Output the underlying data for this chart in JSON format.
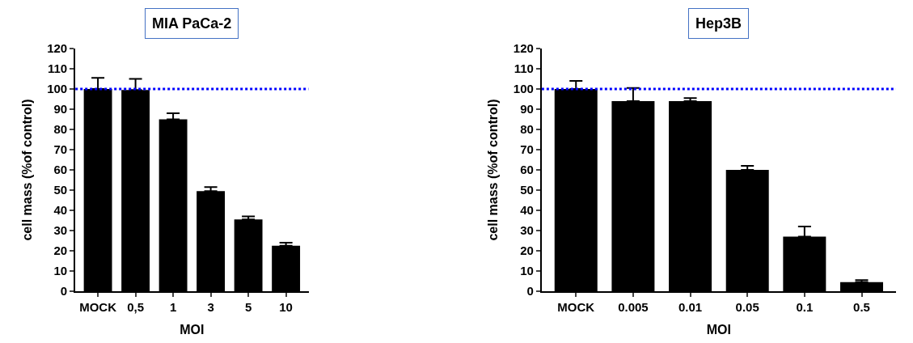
{
  "chart_data": [
    {
      "type": "bar",
      "title": "MIA PaCa-2",
      "xlabel": "MOI",
      "ylabel": "cell mass (%of control)",
      "categories": [
        "MOCK",
        "0,5",
        "1",
        "3",
        "5",
        "10"
      ],
      "values": [
        100,
        99.5,
        85,
        49.5,
        35.5,
        22.5
      ],
      "errors": [
        [
          100,
          105.5
        ],
        [
          99.5,
          105
        ],
        [
          85,
          88
        ],
        [
          49.5,
          51.5
        ],
        [
          35.5,
          37
        ],
        [
          22.5,
          24
        ]
      ],
      "color": "#000000",
      "ylim": [
        0,
        120
      ],
      "yticks": [
        0,
        10,
        20,
        30,
        40,
        50,
        60,
        70,
        80,
        90,
        100,
        110,
        120
      ],
      "ref_lines": [
        {
          "axis": "y",
          "value": 100,
          "color": "#0000ff",
          "line_style": "dotted"
        }
      ]
    },
    {
      "type": "bar",
      "title": "Hep3B",
      "xlabel": "MOI",
      "ylabel": "cell mass (%of control)",
      "categories": [
        "MOCK",
        "0.005",
        "0.01",
        "0.05",
        "0.1",
        "0.5"
      ],
      "values": [
        100,
        94,
        94,
        60,
        27,
        4.5
      ],
      "errors": [
        [
          100,
          104
        ],
        [
          94,
          100.5
        ],
        [
          94,
          95.5
        ],
        [
          60,
          62
        ],
        [
          27,
          32
        ],
        [
          4.5,
          5.5
        ]
      ],
      "color": "#000000",
      "ylim": [
        0,
        120
      ],
      "yticks": [
        0,
        10,
        20,
        30,
        40,
        50,
        60,
        70,
        80,
        90,
        100,
        110,
        120
      ],
      "ref_lines": [
        {
          "axis": "y",
          "value": 100,
          "color": "#0000ff",
          "line_style": "dotted"
        }
      ]
    }
  ]
}
